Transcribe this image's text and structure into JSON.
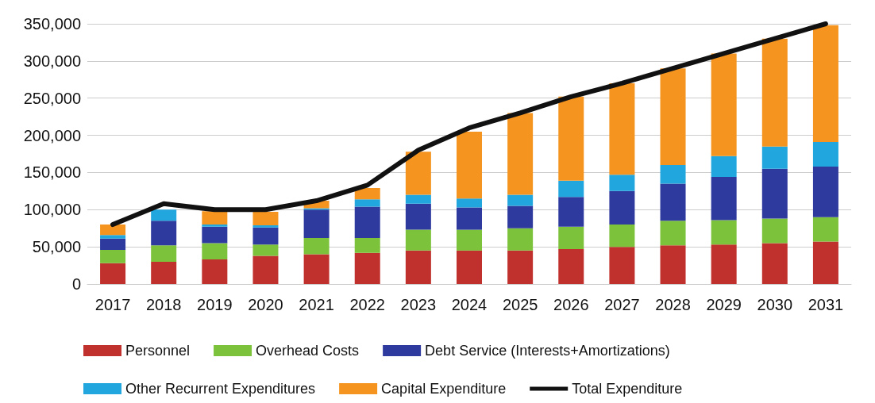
{
  "chart_data": {
    "type": "bar",
    "stacked": true,
    "categories": [
      "2017",
      "2018",
      "2019",
      "2020",
      "2021",
      "2022",
      "2023",
      "2024",
      "2025",
      "2026",
      "2027",
      "2028",
      "2029",
      "2030",
      "2031"
    ],
    "series": [
      {
        "name": "Personnel",
        "color": "#c0302c",
        "values": [
          28000,
          30000,
          33000,
          38000,
          40000,
          42000,
          45000,
          45000,
          45000,
          47000,
          50000,
          52000,
          53000,
          55000,
          57000
        ]
      },
      {
        "name": "Overhead Costs",
        "color": "#7cc23a",
        "values": [
          18000,
          22000,
          22000,
          15000,
          22000,
          20000,
          28000,
          28000,
          30000,
          30000,
          30000,
          33000,
          33000,
          33000,
          33000
        ]
      },
      {
        "name": "Debt Service (Interests+Amortizations)",
        "color": "#2e3a9e",
        "values": [
          15000,
          33000,
          22000,
          23000,
          38000,
          42000,
          35000,
          30000,
          30000,
          40000,
          45000,
          50000,
          58000,
          67000,
          68000
        ]
      },
      {
        "name": "Other Recurrent Expenditures",
        "color": "#21a6de",
        "values": [
          5000,
          15000,
          3000,
          3000,
          2000,
          10000,
          12000,
          12000,
          15000,
          22000,
          22000,
          25000,
          28000,
          30000,
          33000
        ]
      },
      {
        "name": "Capital Expenditure",
        "color": "#f5951f",
        "values": [
          14000,
          null,
          18000,
          18000,
          10000,
          15000,
          58000,
          90000,
          110000,
          113000,
          123000,
          130000,
          138000,
          145000,
          157000
        ]
      },
      {
        "name": "Total Expenditure",
        "type": "line",
        "color": "#111111",
        "values": [
          80000,
          108000,
          100000,
          100000,
          112000,
          133000,
          180000,
          210000,
          230000,
          252000,
          270000,
          290000,
          310000,
          330000,
          350000
        ]
      }
    ],
    "ylim": [
      0,
      350000
    ],
    "yticks": [
      0,
      {
        "value": 50000,
        "label": "50,000"
      },
      {
        "value": 100000,
        "label": "100,000"
      },
      {
        "value": 150000,
        "label": "150,000"
      },
      {
        "value": 200000,
        "label": "200,000"
      },
      {
        "value": 250000,
        "label": "250,000"
      },
      {
        "value": 300000,
        "label": "300,000"
      },
      {
        "value": 350000,
        "label": "350,000"
      }
    ],
    "grid": "y",
    "legend": "bottom",
    "marker": "none"
  }
}
